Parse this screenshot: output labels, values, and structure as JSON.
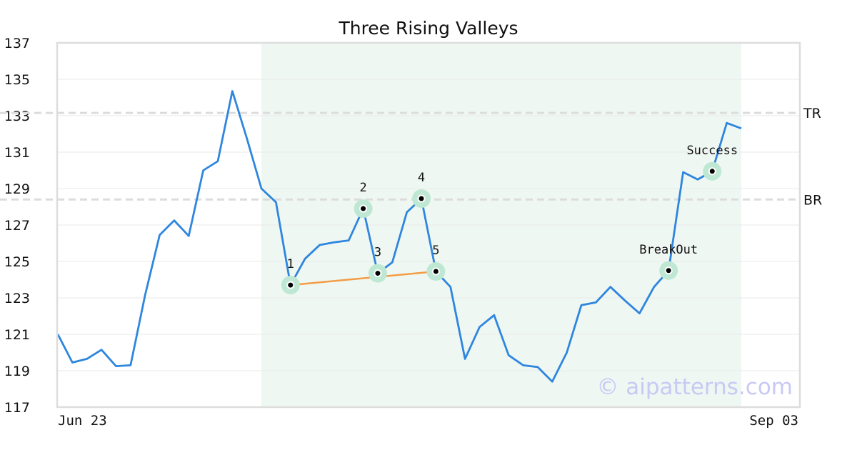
{
  "chart_data": {
    "type": "line",
    "title": "Three Rising Valleys",
    "xlabel": "",
    "ylabel": "",
    "ylim": [
      117,
      137
    ],
    "y_ticks": [
      117,
      119,
      121,
      123,
      125,
      127,
      129,
      131,
      133,
      135,
      137
    ],
    "x_tick_labels": [
      "Jun 23",
      "Sep 03"
    ],
    "grid": true,
    "series": [
      {
        "color": "#2e86de",
        "values": [
          121.0,
          119.45,
          119.65,
          120.15,
          119.25,
          119.3,
          123.15,
          126.45,
          127.25,
          126.4,
          130.0,
          130.5,
          134.35,
          131.75,
          129.0,
          128.25,
          123.7,
          125.15,
          125.9,
          126.05,
          126.15,
          127.9,
          124.35,
          124.95,
          127.7,
          128.45,
          124.45,
          123.6,
          119.65,
          121.4,
          122.05,
          119.85,
          119.3,
          119.2,
          118.4,
          120.0,
          122.6,
          122.75,
          123.6,
          122.85,
          122.15,
          123.6,
          124.5,
          129.9,
          129.5,
          129.95,
          132.6,
          132.3
        ]
      }
    ],
    "highlight_region": {
      "start_index": 14,
      "end_index": 47,
      "color": "#eff7f3"
    },
    "reference_lines": [
      {
        "label": "TR",
        "value": 133.15
      },
      {
        "label": "BR",
        "value": 128.4
      }
    ],
    "pattern_points": [
      {
        "label": "1",
        "index": 16,
        "value": 123.7
      },
      {
        "label": "2",
        "index": 21,
        "value": 127.9
      },
      {
        "label": "3",
        "index": 22,
        "value": 124.35
      },
      {
        "label": "4",
        "index": 25,
        "value": 128.45
      },
      {
        "label": "5",
        "index": 26,
        "value": 124.45
      },
      {
        "label": "BreakOut",
        "index": 42,
        "value": 124.5
      },
      {
        "label": "Success",
        "index": 45,
        "value": 129.95
      }
    ],
    "trendline": {
      "from_index": 16,
      "to_index": 26,
      "color": "#f39c44"
    },
    "colors": {
      "line": "#2e86de",
      "marker_halo": "#bfe8d4",
      "trendline": "#f39c44",
      "frame": "#dddddd",
      "grid": "#e9e9e9"
    }
  },
  "watermark": "© aipatterns.com"
}
